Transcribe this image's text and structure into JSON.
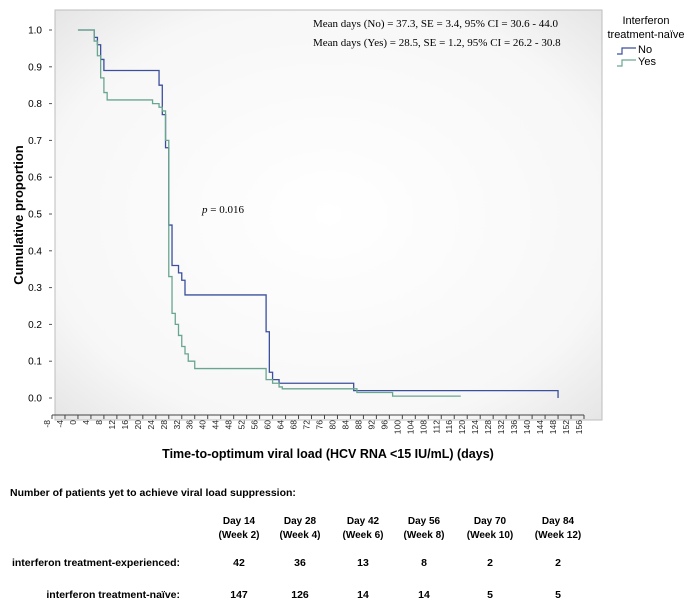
{
  "chart_data": {
    "type": "line",
    "step": true,
    "title": "",
    "xlabel": "Time-to-optimum viral load (HCV RNA <15 IU/mL) (days)",
    "ylabel": "Cumulative proportion",
    "xlim": [
      -8,
      156
    ],
    "ylim": [
      0,
      1.0
    ],
    "xticks": [
      -8,
      -4,
      0,
      4,
      8,
      12,
      16,
      20,
      24,
      28,
      32,
      36,
      40,
      44,
      48,
      52,
      56,
      60,
      64,
      68,
      72,
      76,
      80,
      84,
      88,
      92,
      96,
      100,
      104,
      108,
      112,
      116,
      120,
      124,
      128,
      132,
      136,
      140,
      144,
      148,
      152,
      156
    ],
    "yticks": [
      0.0,
      0.1,
      0.2,
      0.3,
      0.4,
      0.5,
      0.6,
      0.7,
      0.8,
      0.9,
      1.0
    ],
    "ytick_labels": [
      "0.0",
      "0.1",
      "0.2",
      "0.3",
      "0.4",
      "0.5",
      "0.6",
      "0.7",
      "0.8",
      "0.9",
      "1.0"
    ],
    "legend": {
      "title_line1": "Interferon",
      "title_line2": "treatment-naïve",
      "position": "top-right outside"
    },
    "annotations": {
      "mean_no": "Mean days (No) = 37.3, SE = 3.4, 95% CI = 30.6 - 44.0",
      "mean_yes": "Mean days (Yes) = 28.5, SE = 1.2, 95% CI = 26.2 - 30.8",
      "p_symbol": "p",
      "p_value": " = 0.016"
    },
    "series": [
      {
        "name": "No",
        "color": "#3a4f9e",
        "points": [
          [
            0,
            1.0
          ],
          [
            4,
            1.0
          ],
          [
            5,
            0.98
          ],
          [
            6,
            0.96
          ],
          [
            7,
            0.92
          ],
          [
            8,
            0.89
          ],
          [
            9,
            0.89
          ],
          [
            24,
            0.89
          ],
          [
            25,
            0.85
          ],
          [
            26,
            0.77
          ],
          [
            27,
            0.68
          ],
          [
            28,
            0.47
          ],
          [
            29,
            0.36
          ],
          [
            31,
            0.34
          ],
          [
            32,
            0.32
          ],
          [
            33,
            0.28
          ],
          [
            57,
            0.28
          ],
          [
            58,
            0.18
          ],
          [
            59,
            0.07
          ],
          [
            60,
            0.05
          ],
          [
            62,
            0.04
          ],
          [
            63,
            0.04
          ],
          [
            84,
            0.04
          ],
          [
            85,
            0.02
          ],
          [
            148,
            0.02
          ],
          [
            148,
            0.0
          ]
        ]
      },
      {
        "name": "Yes",
        "color": "#6aa68f",
        "points": [
          [
            0,
            1.0
          ],
          [
            4,
            1.0
          ],
          [
            5,
            0.97
          ],
          [
            6,
            0.93
          ],
          [
            7,
            0.87
          ],
          [
            8,
            0.83
          ],
          [
            9,
            0.81
          ],
          [
            22,
            0.81
          ],
          [
            23,
            0.8
          ],
          [
            25,
            0.79
          ],
          [
            26,
            0.78
          ],
          [
            27,
            0.7
          ],
          [
            28,
            0.33
          ],
          [
            29,
            0.23
          ],
          [
            30,
            0.2
          ],
          [
            31,
            0.17
          ],
          [
            32,
            0.14
          ],
          [
            33,
            0.12
          ],
          [
            34,
            0.1
          ],
          [
            36,
            0.08
          ],
          [
            57,
            0.08
          ],
          [
            58,
            0.05
          ],
          [
            60,
            0.04
          ],
          [
            62,
            0.03
          ],
          [
            63,
            0.025
          ],
          [
            84,
            0.025
          ],
          [
            86,
            0.015
          ],
          [
            96,
            0.015
          ],
          [
            97,
            0.005
          ],
          [
            118,
            0.005
          ]
        ]
      }
    ]
  },
  "table": {
    "heading": "Number of patients yet to achieve viral load suppression:",
    "columns": [
      {
        "day": "Day 14",
        "week": "(Week 2)"
      },
      {
        "day": "Day 28",
        "week": "(Week 4)"
      },
      {
        "day": "Day 42",
        "week": "(Week 6)"
      },
      {
        "day": "Day 56",
        "week": "(Week 8)"
      },
      {
        "day": "Day 70",
        "week": "(Week 10)"
      },
      {
        "day": "Day 84",
        "week": "(Week 12)"
      }
    ],
    "rows": [
      {
        "label": "interferon treatment-experienced:",
        "values": [
          "42",
          "36",
          "13",
          "8",
          "2",
          "2"
        ]
      },
      {
        "label": "interferon treatment-naïve:",
        "values": [
          "147",
          "126",
          "14",
          "14",
          "5",
          "5"
        ]
      }
    ]
  }
}
